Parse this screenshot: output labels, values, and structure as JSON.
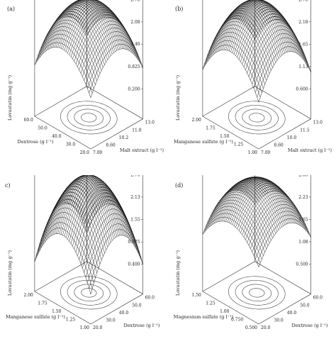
{
  "chart_data": [
    {
      "type": "surface",
      "panel_label": "(a)",
      "zlabel": "Lovastatin (mg g⁻¹)",
      "xlabel": "Dextrose (g l⁻¹)",
      "ylabel": "Malt extract (g l⁻¹)",
      "z_ticks": [
        "2.70",
        "2.08",
        "1.46",
        "0.825",
        "0.200"
      ],
      "x_ticks": [
        "60.0",
        "50.0",
        "40.0",
        "30.0",
        "20.0"
      ],
      "y_ticks": [
        "7.00",
        "8.60",
        "10.2",
        "11.8",
        "13.0"
      ],
      "z_range": [
        0.2,
        2.7
      ],
      "x_range": [
        20,
        60
      ],
      "y_range": [
        7,
        13
      ],
      "peak": {
        "x": 40,
        "y": 10,
        "z": 2.6
      },
      "corner_min_z": 0.8,
      "grid": true,
      "contour_projection": true
    },
    {
      "type": "surface",
      "panel_label": "(b)",
      "zlabel": "Lovastatin (mg g⁻¹)",
      "xlabel": "Manganese sulfate (g l⁻¹)",
      "ylabel": "Malt extract (g l⁻¹)",
      "z_ticks": [
        "2.70",
        "2.18",
        "1.65",
        "1.13",
        "0.600"
      ],
      "x_ticks": [
        "2.00",
        "1.75",
        "1.50",
        "1.25",
        "1.00"
      ],
      "y_ticks": [
        "7.00",
        "8.60",
        "10.0",
        "11.5",
        "13.0"
      ],
      "z_range": [
        0.6,
        2.7
      ],
      "x_range": [
        1.0,
        2.0
      ],
      "y_range": [
        7,
        13
      ],
      "peak": {
        "x": 1.5,
        "y": 10,
        "z": 2.6
      },
      "corner_min_z": 1.0,
      "grid": true,
      "contour_projection": true
    },
    {
      "type": "surface",
      "panel_label": "c)",
      "zlabel": "Lovastatin (mg g⁻¹)",
      "xlabel": "Manganese sulfate (g l⁻¹)",
      "ylabel": "Dextrose (g l⁻¹)",
      "z_ticks": [
        "2.70",
        "2.13",
        "1.55",
        "0.975",
        "0.400"
      ],
      "x_ticks": [
        "2.00",
        "1.75",
        "1.50",
        "1.25",
        "1.00"
      ],
      "y_ticks": [
        "20.0",
        "30.0",
        "40.0",
        "50.0",
        "60.0"
      ],
      "z_range": [
        0.4,
        2.7
      ],
      "x_range": [
        1.0,
        2.0
      ],
      "y_range": [
        20,
        60
      ],
      "peak": {
        "x": 1.5,
        "y": 40,
        "z": 2.6
      },
      "corner_min_z": 0.4,
      "grid": true,
      "contour_projection": true
    },
    {
      "type": "surface",
      "panel_label": "(d)",
      "zlabel": "Lovastatin (mg g⁻¹)",
      "xlabel": "Magnesium sulfate (g l⁻¹)",
      "ylabel": "Dextrose (g l⁻¹)",
      "z_ticks": [
        "2.80",
        "2.23",
        "1.65",
        "1.08",
        "0.500"
      ],
      "x_ticks": [
        "1.50",
        "1.25",
        "1.00",
        "0.750",
        "0.500"
      ],
      "y_ticks": [
        "20.0",
        "30.0",
        "40.0",
        "50.0",
        "60.0"
      ],
      "z_range": [
        0.5,
        2.8
      ],
      "x_range": [
        0.5,
        1.5
      ],
      "y_range": [
        20,
        60
      ],
      "peak": {
        "x": 1.0,
        "y": 40,
        "z": 2.6
      },
      "corner_min_z": 1.2,
      "grid": true,
      "contour_projection": true
    }
  ]
}
